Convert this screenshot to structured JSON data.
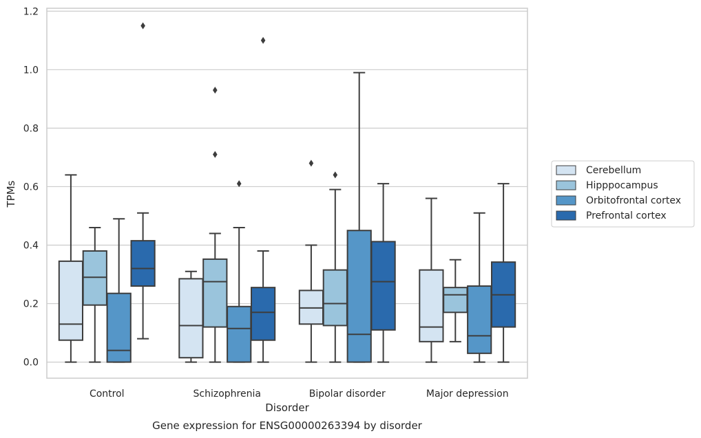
{
  "chart_data": {
    "type": "box",
    "caption": "Gene expression for ENSG00000263394 by disorder",
    "xlabel": "Disorder",
    "ylabel": "TPMs",
    "ylim": [
      -0.055,
      1.21
    ],
    "yticks": [
      "0.0",
      "0.2",
      "0.4",
      "0.6",
      "0.8",
      "1.0",
      "1.2"
    ],
    "ytick_values": [
      0.0,
      0.2,
      0.4,
      0.6,
      0.8,
      1.0,
      1.2
    ],
    "grid": "horizontal",
    "legend_position": "right",
    "categories": [
      "Control",
      "Schizophrenia",
      "Bipolar disorder",
      "Major depression"
    ],
    "series": [
      {
        "name": "Cerebellum",
        "color": "#d4e4f2",
        "boxes": [
          {
            "whislo": 0.0,
            "q1": 0.075,
            "med": 0.13,
            "q3": 0.345,
            "whishi": 0.64,
            "fliers": []
          },
          {
            "whislo": 0.0,
            "q1": 0.015,
            "med": 0.125,
            "q3": 0.285,
            "whishi": 0.31,
            "fliers": []
          },
          {
            "whislo": 0.0,
            "q1": 0.13,
            "med": 0.185,
            "q3": 0.245,
            "whishi": 0.4,
            "fliers": [
              0.68
            ]
          },
          {
            "whislo": 0.0,
            "q1": 0.07,
            "med": 0.12,
            "q3": 0.315,
            "whishi": 0.56,
            "fliers": []
          }
        ]
      },
      {
        "name": "Hipppocampus",
        "color": "#9ac4dc",
        "boxes": [
          {
            "whislo": 0.0,
            "q1": 0.195,
            "med": 0.29,
            "q3": 0.38,
            "whishi": 0.46,
            "fliers": []
          },
          {
            "whislo": 0.0,
            "q1": 0.12,
            "med": 0.275,
            "q3": 0.352,
            "whishi": 0.44,
            "fliers": [
              0.71,
              0.93
            ]
          },
          {
            "whislo": 0.0,
            "q1": 0.125,
            "med": 0.2,
            "q3": 0.315,
            "whishi": 0.59,
            "fliers": [
              0.64
            ]
          },
          {
            "whislo": 0.07,
            "q1": 0.17,
            "med": 0.23,
            "q3": 0.255,
            "whishi": 0.35,
            "fliers": []
          }
        ]
      },
      {
        "name": "Orbitofrontal cortex",
        "color": "#5596c8",
        "boxes": [
          {
            "whislo": 0.0,
            "q1": 0.0,
            "med": 0.04,
            "q3": 0.235,
            "whishi": 0.49,
            "fliers": []
          },
          {
            "whislo": 0.0,
            "q1": 0.0,
            "med": 0.115,
            "q3": 0.19,
            "whishi": 0.46,
            "fliers": [
              0.61
            ]
          },
          {
            "whislo": 0.0,
            "q1": 0.0,
            "med": 0.095,
            "q3": 0.45,
            "whishi": 0.99,
            "fliers": []
          },
          {
            "whislo": 0.0,
            "q1": 0.03,
            "med": 0.09,
            "q3": 0.26,
            "whishi": 0.51,
            "fliers": []
          }
        ]
      },
      {
        "name": "Prefrontal cortex",
        "color": "#2a6aad",
        "boxes": [
          {
            "whislo": 0.08,
            "q1": 0.26,
            "med": 0.32,
            "q3": 0.415,
            "whishi": 0.51,
            "fliers": [
              1.15
            ]
          },
          {
            "whislo": 0.0,
            "q1": 0.075,
            "med": 0.17,
            "q3": 0.255,
            "whishi": 0.38,
            "fliers": [
              1.1
            ]
          },
          {
            "whislo": 0.0,
            "q1": 0.11,
            "med": 0.275,
            "q3": 0.412,
            "whishi": 0.61,
            "fliers": []
          },
          {
            "whislo": 0.0,
            "q1": 0.12,
            "med": 0.23,
            "q3": 0.342,
            "whishi": 0.61,
            "fliers": []
          }
        ]
      }
    ]
  },
  "colors": {
    "grid": "#cccccc",
    "frame": "#cccccc",
    "box_edge": "#3d3d3d",
    "text": "#262626"
  }
}
